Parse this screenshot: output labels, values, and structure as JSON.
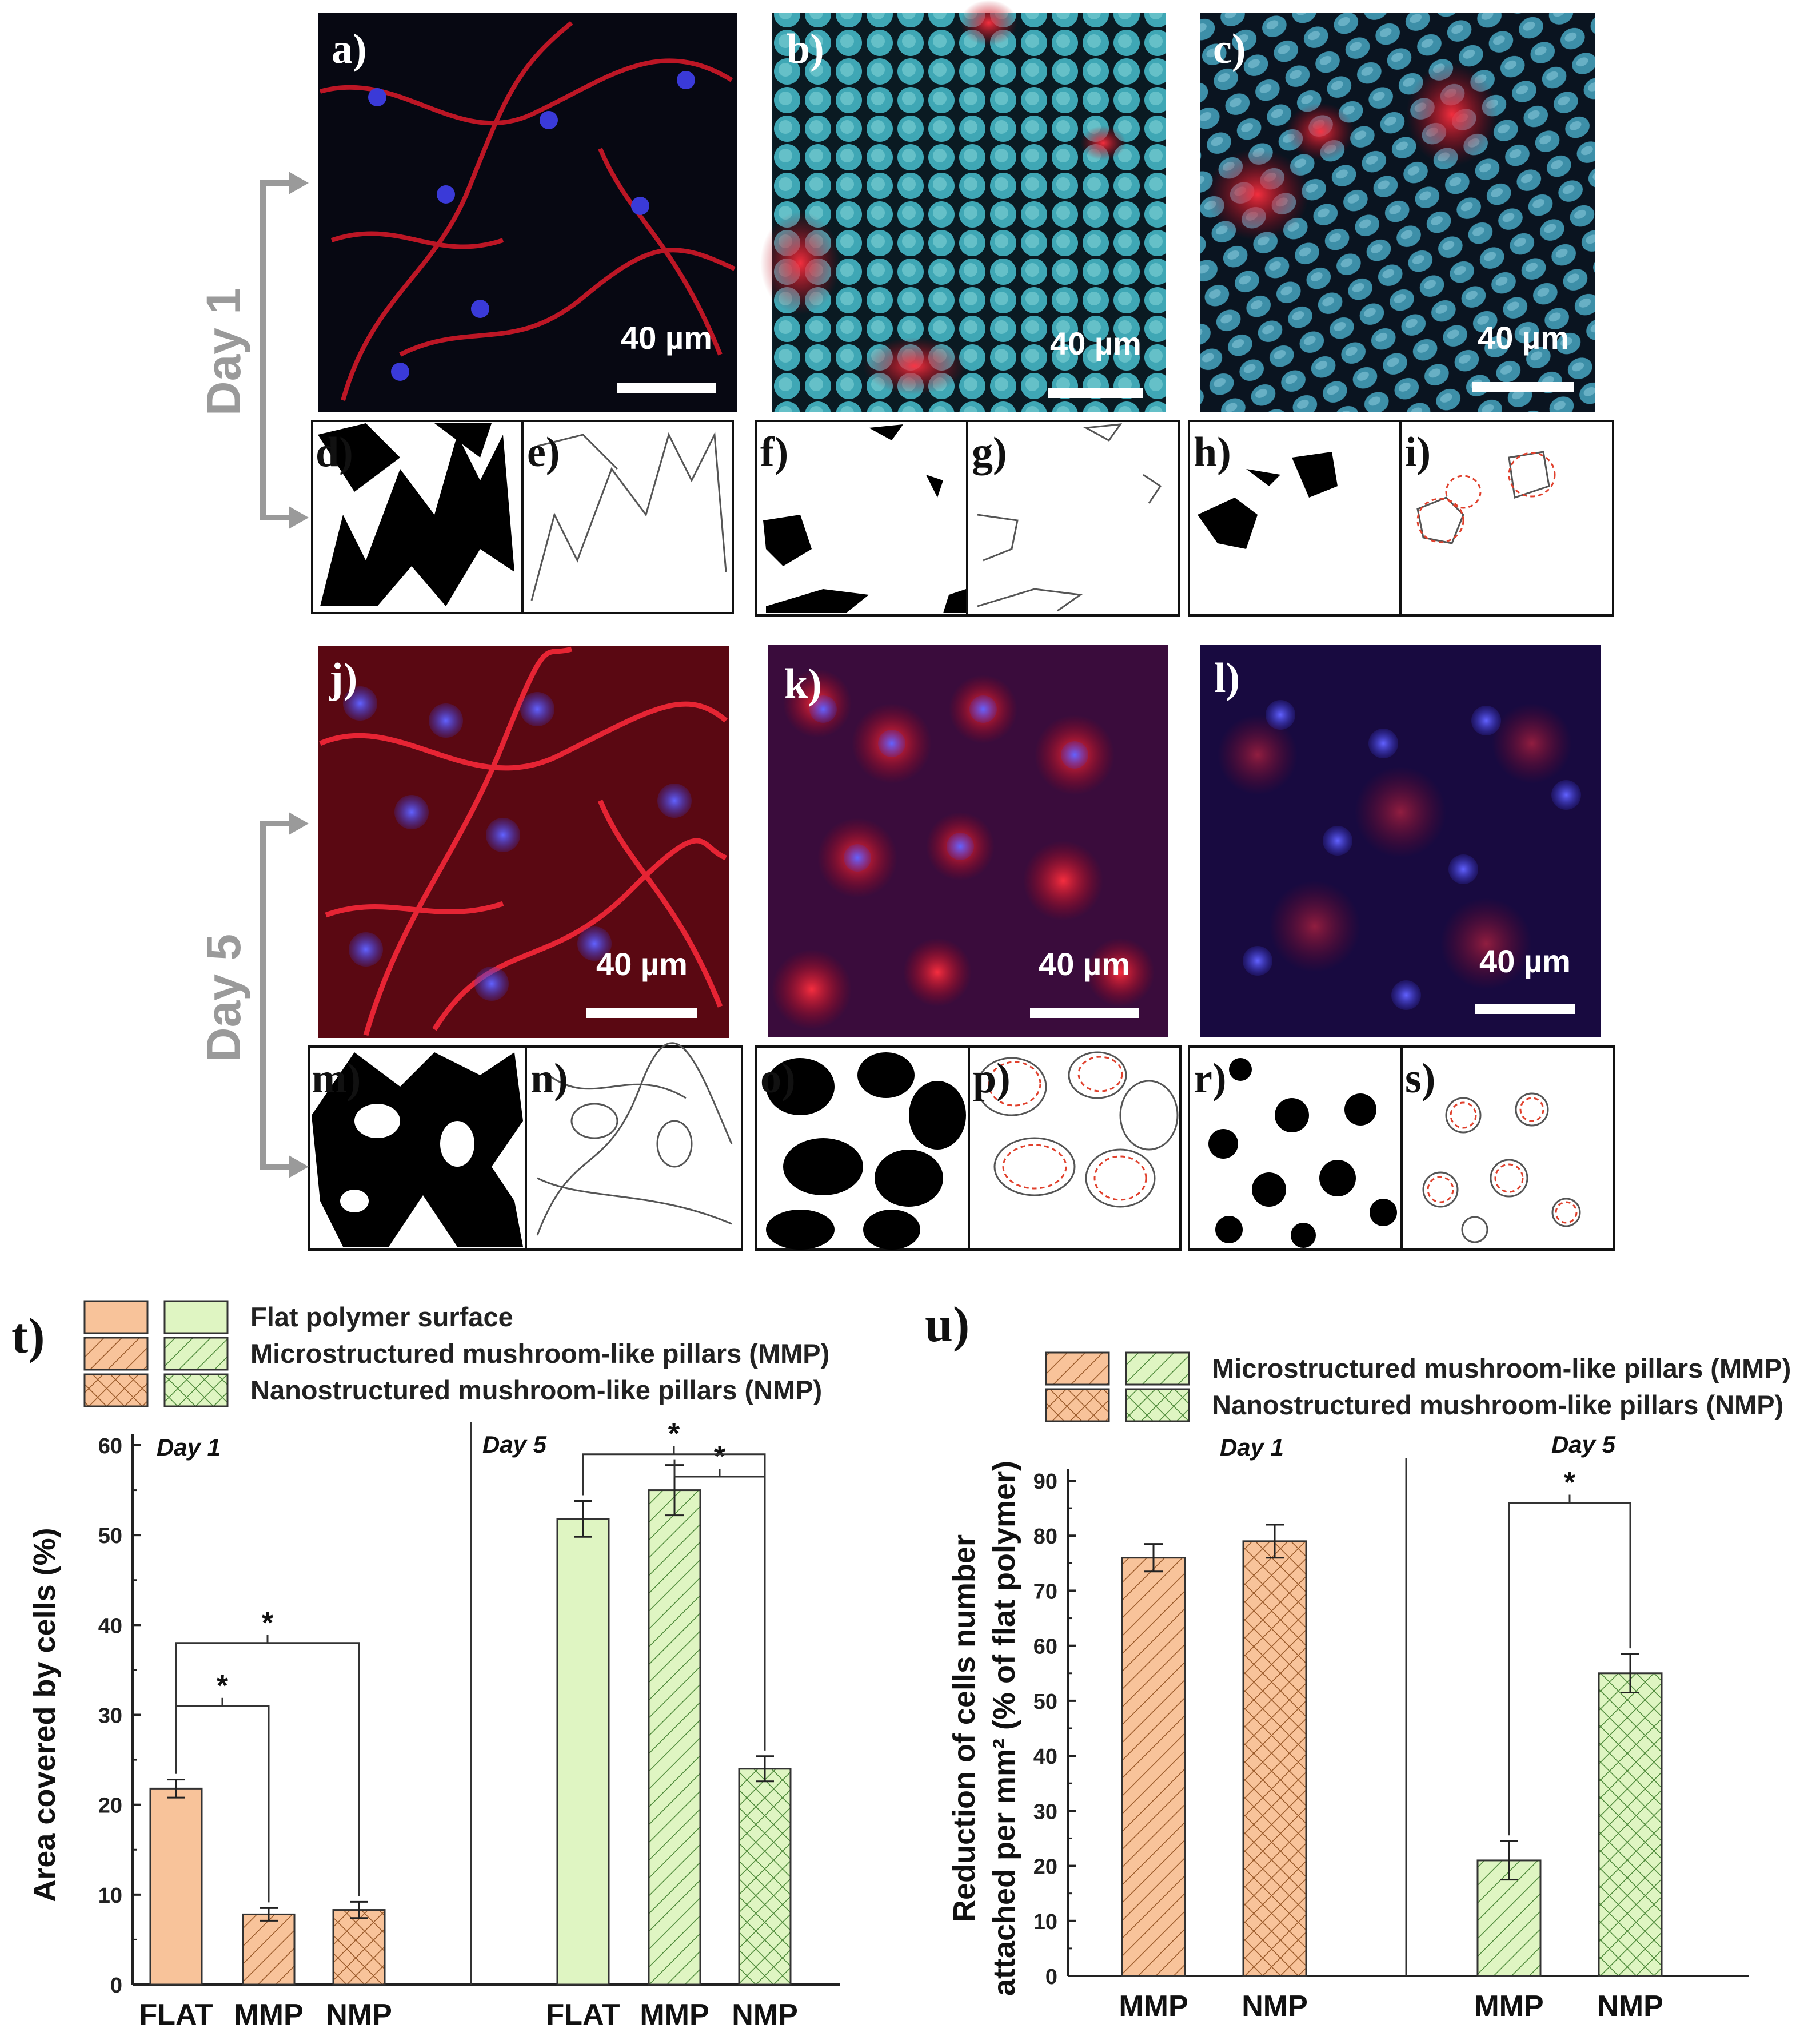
{
  "micrographs": {
    "labels": [
      "a)",
      "b)",
      "c)",
      "j)",
      "k)",
      "l)"
    ],
    "scale_bar": "40 µm",
    "colors": {
      "actin": "#e0192c",
      "nucleus": "#3a3ad8",
      "pillar": "#3fa7b5",
      "background": "#070812"
    }
  },
  "binary_panels": {
    "labels": [
      "d)",
      "e)",
      "f)",
      "g)",
      "h)",
      "i)",
      "m)",
      "n)",
      "o)",
      "p)",
      "r)",
      "s)"
    ]
  },
  "side_labels": {
    "day1": "Day 1",
    "day5": "Day 5"
  },
  "chart_data": [
    {
      "type": "bar",
      "panel_label": "t)",
      "ylabel": "Area covered by cells (%)",
      "ylim": [
        0,
        60
      ],
      "yticks": [
        0,
        10,
        20,
        30,
        40,
        50,
        60
      ],
      "legend_placement": "top",
      "legend": [
        {
          "label": "Flat polymer surface",
          "pattern": "solid"
        },
        {
          "label": "Microstructured mushroom-like pillars (MMP)",
          "pattern": "hatch"
        },
        {
          "label": "Nanostructured mushroom-like pillars (NMP)",
          "pattern": "crosshatch"
        }
      ],
      "groups": [
        {
          "name": "Day 1",
          "color": "#f8c39a",
          "categories": [
            "FLAT",
            "MMP",
            "NMP"
          ],
          "values": [
            21.8,
            7.8,
            8.3
          ],
          "errors": [
            1.0,
            0.7,
            0.9
          ],
          "patterns": [
            "solid",
            "hatch",
            "crosshatch"
          ]
        },
        {
          "name": "Day 5",
          "color": "#dff5c2",
          "categories": [
            "FLAT",
            "MMP",
            "NMP"
          ],
          "values": [
            51.8,
            55.0,
            24.0
          ],
          "errors": [
            2.0,
            2.8,
            1.4
          ],
          "patterns": [
            "solid",
            "hatch",
            "crosshatch"
          ]
        }
      ],
      "significance": [
        {
          "group": 0,
          "from": 0,
          "to": 1,
          "y": 31,
          "label": "*"
        },
        {
          "group": 0,
          "from": 0,
          "to": 2,
          "y": 38,
          "label": "*"
        },
        {
          "group": 1,
          "from": 1,
          "to": 2,
          "y": 56.5,
          "label": "*"
        },
        {
          "group": 1,
          "from": 0,
          "to": 2,
          "y": 59,
          "label": "*"
        }
      ]
    },
    {
      "type": "bar",
      "panel_label": "u)",
      "ylabel_line1": "Reduction of cells number",
      "ylabel_line2": "attached per mm² (% of flat polymer)",
      "ylim": [
        0,
        90
      ],
      "yticks": [
        0,
        10,
        20,
        30,
        40,
        50,
        60,
        70,
        80,
        90
      ],
      "legend_placement": "top",
      "legend": [
        {
          "label": "Microstructured mushroom-like pillars (MMP)",
          "pattern": "hatch"
        },
        {
          "label": "Nanostructured mushroom-like pillars (NMP)",
          "pattern": "crosshatch"
        }
      ],
      "groups": [
        {
          "name": "Day 1",
          "color": "#f8c39a",
          "categories": [
            "MMP",
            "NMP"
          ],
          "values": [
            76.0,
            79.0
          ],
          "errors": [
            2.5,
            3.0
          ],
          "patterns": [
            "hatch",
            "crosshatch"
          ]
        },
        {
          "name": "Day 5",
          "color": "#dff5c2",
          "categories": [
            "MMP",
            "NMP"
          ],
          "values": [
            21.0,
            55.0
          ],
          "errors": [
            3.5,
            3.5
          ],
          "patterns": [
            "hatch",
            "crosshatch"
          ]
        }
      ],
      "significance": [
        {
          "group": 1,
          "from": 0,
          "to": 1,
          "y": 86,
          "label": "*"
        }
      ]
    }
  ]
}
